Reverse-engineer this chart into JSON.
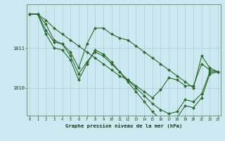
{
  "title": "Graphe pression niveau de la mer (hPa)",
  "background_color": "#cce8f0",
  "grid_color": "#aaccda",
  "line_color": "#2d6a2d",
  "marker_color": "#2d6a2d",
  "ylabel_ticks": [
    1010,
    1011
  ],
  "xlim": [
    -0.3,
    23.3
  ],
  "ylim": [
    1009.3,
    1012.1
  ],
  "series": [
    [
      1011.85,
      1011.85,
      1011.7,
      1011.5,
      1011.35,
      1011.2,
      1011.05,
      1010.9,
      1010.75,
      1010.6,
      1010.45,
      1010.3,
      1010.2,
      1010.05,
      1009.9,
      1009.75,
      1009.95,
      1010.25,
      1010.2,
      1010.05,
      1010.05,
      1010.6,
      1010.45,
      1010.4
    ],
    [
      1011.85,
      1011.85,
      1011.6,
      1011.2,
      1011.1,
      1010.9,
      1010.5,
      1011.1,
      1011.5,
      1011.5,
      1011.35,
      1011.25,
      1011.2,
      1011.05,
      1010.9,
      1010.75,
      1010.6,
      1010.45,
      1010.3,
      1010.15,
      1010.0,
      1010.8,
      1010.5,
      1010.4
    ],
    [
      1011.85,
      1011.85,
      1011.45,
      1011.15,
      1011.1,
      1010.8,
      1010.35,
      1010.65,
      1010.9,
      1010.8,
      1010.6,
      1010.4,
      1010.2,
      1010.0,
      1009.8,
      1009.6,
      1009.45,
      1009.35,
      1009.4,
      1009.7,
      1009.65,
      1009.85,
      1010.4,
      1010.4
    ],
    [
      1011.85,
      1011.85,
      1011.35,
      1011.0,
      1010.95,
      1010.7,
      1010.2,
      1010.6,
      1010.95,
      1010.85,
      1010.65,
      1010.4,
      1010.15,
      1009.9,
      1009.65,
      1009.4,
      1009.2,
      1009.15,
      1009.25,
      1009.55,
      1009.5,
      1009.75,
      1010.35,
      1010.4
    ]
  ]
}
